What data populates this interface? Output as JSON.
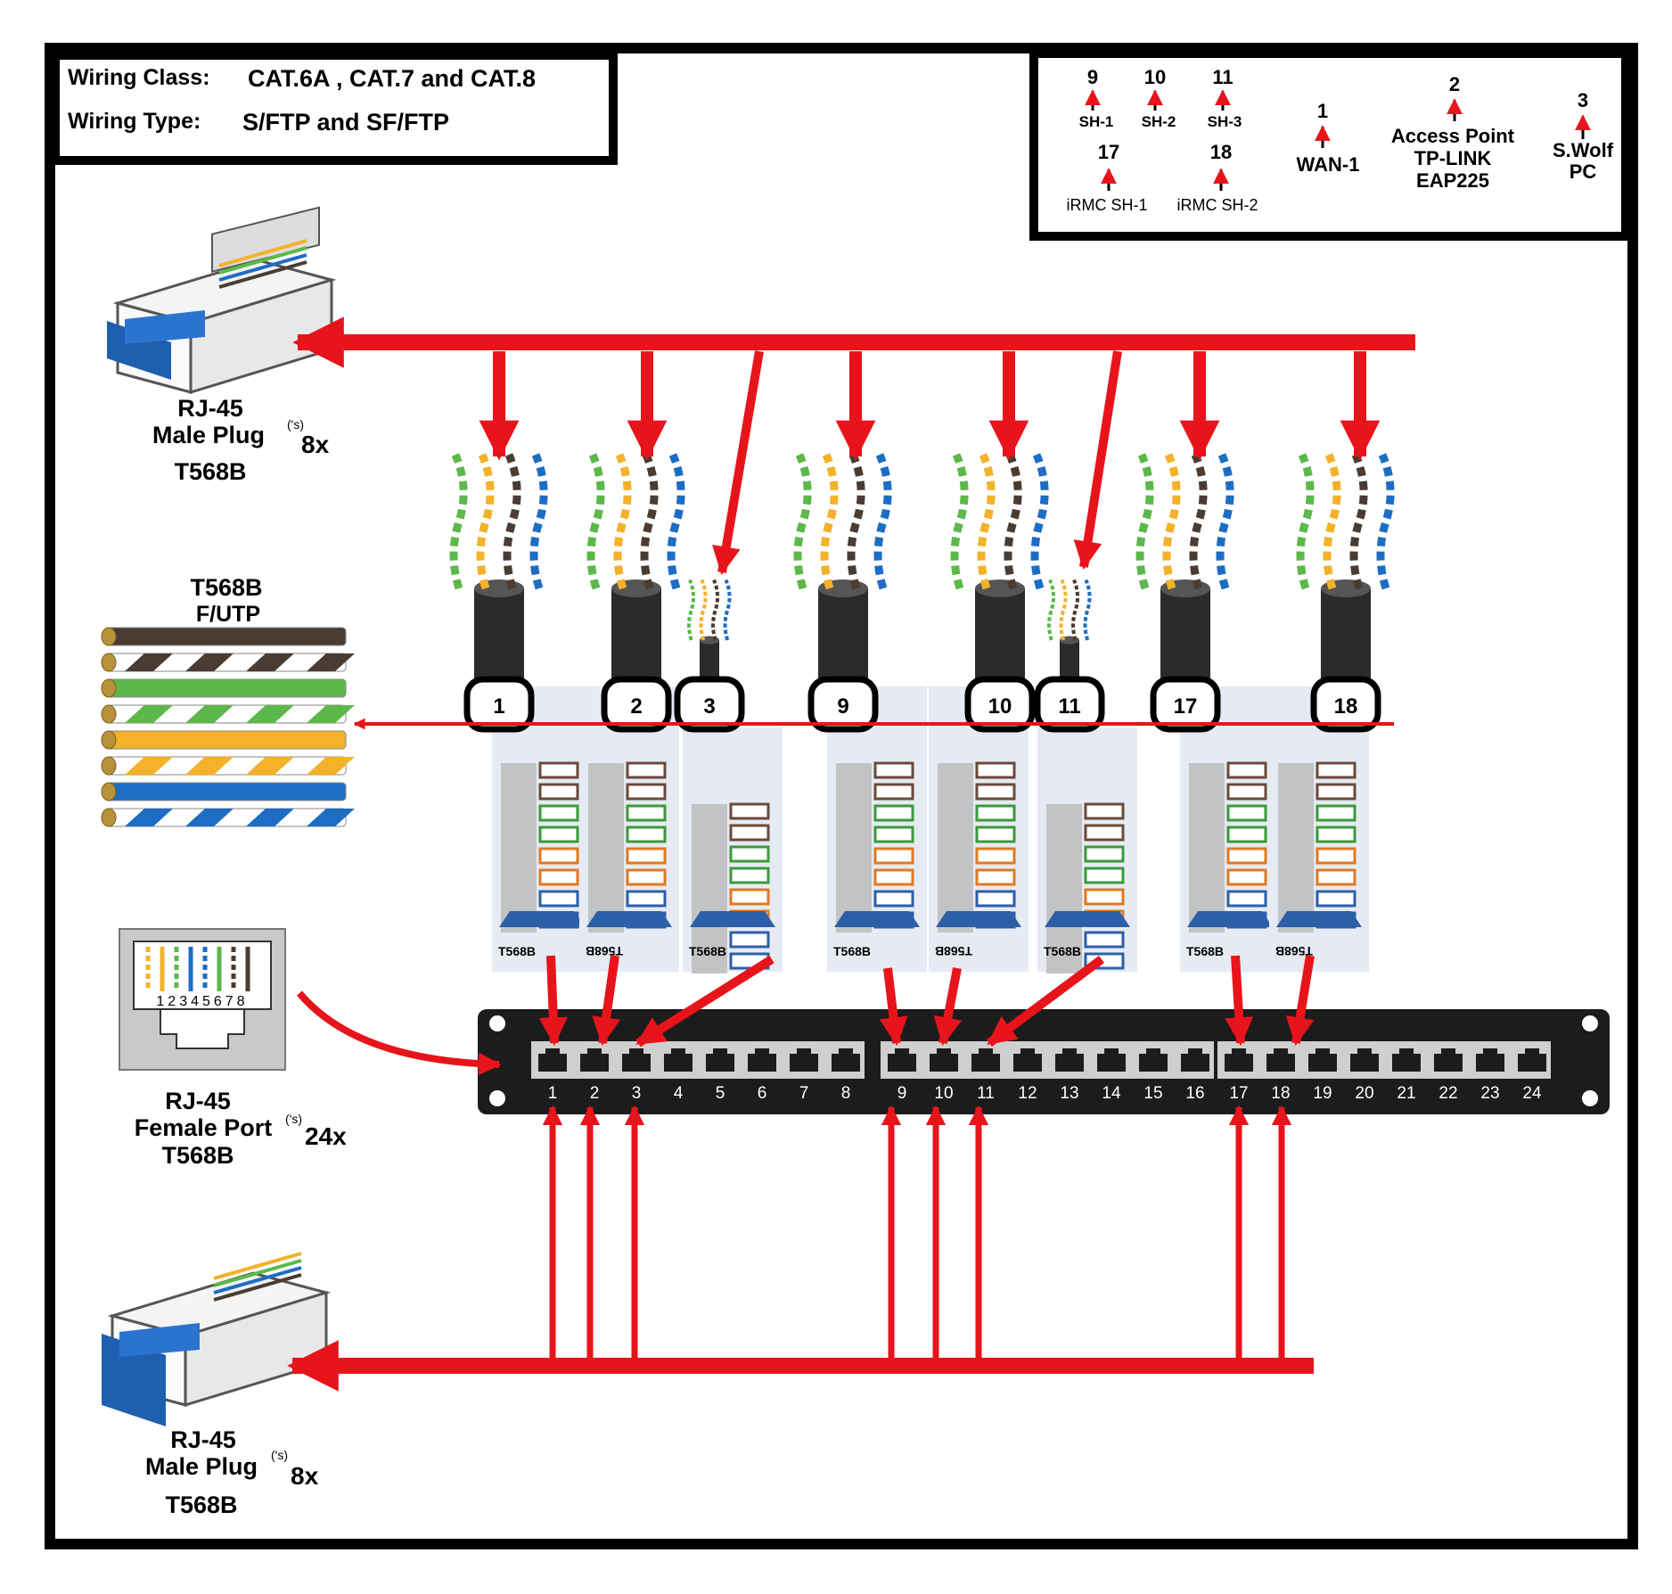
{
  "header": {
    "class_label": "Wiring Class:",
    "class_value": "CAT.6A , CAT.7 and CAT.8",
    "type_label": "Wiring Type:",
    "type_value": "S/FTP and SF/FTP"
  },
  "legend": [
    {
      "num": "9",
      "name": "SH-1"
    },
    {
      "num": "10",
      "name": "SH-2"
    },
    {
      "num": "11",
      "name": "SH-3"
    },
    {
      "num": "17",
      "name": "iRMC SH-1"
    },
    {
      "num": "18",
      "name": "iRMC SH-2"
    },
    {
      "num": "1",
      "name": "WAN-1"
    },
    {
      "num": "2",
      "name": "Access Point",
      "name2": "TP-LINK",
      "name3": "EAP225"
    },
    {
      "num": "3",
      "name": "S.Wolf",
      "name2": "PC"
    }
  ],
  "plug_top": {
    "line1": "RJ-45",
    "line2": "Male Plug",
    "sup": "('s)",
    "count": "8x",
    "line3": "T568B"
  },
  "plug_bottom": {
    "line1": "RJ-45",
    "line2": "Male Plug",
    "sup": "('s)",
    "count": "8x",
    "line3": "T568B"
  },
  "wire_code": {
    "title": "T568B",
    "subtitle": "F/UTP"
  },
  "wire_colors": [
    {
      "base": "#4a3c33",
      "stripe": null
    },
    {
      "base": "#ffffff",
      "stripe": "#4a3c33"
    },
    {
      "base": "#5cb84a",
      "stripe": null
    },
    {
      "base": "#ffffff",
      "stripe": "#5cb84a"
    },
    {
      "base": "#f4b12a",
      "stripe": null
    },
    {
      "base": "#ffffff",
      "stripe": "#f4b12a"
    },
    {
      "base": "#1d6dc4",
      "stripe": null
    },
    {
      "base": "#ffffff",
      "stripe": "#1d6dc4"
    }
  ],
  "female_port": {
    "pins": "12345678",
    "line1": "RJ-45",
    "line2": "Female Port",
    "sup": "('s)",
    "count": "24x",
    "line3": "T568B"
  },
  "jack_standard": "T568B",
  "jack_labels": [
    "1",
    "2",
    "3",
    "9",
    "10",
    "11",
    "17",
    "18"
  ],
  "patch_panel": {
    "ports": [
      "1",
      "2",
      "3",
      "4",
      "5",
      "6",
      "7",
      "8",
      "9",
      "10",
      "11",
      "12",
      "13",
      "14",
      "15",
      "16",
      "17",
      "18",
      "19",
      "20",
      "21",
      "22",
      "23",
      "24"
    ]
  },
  "colors": {
    "arrow": "#e8141b",
    "panel": "#1c1c1c",
    "port_row": "#cfcfcf"
  }
}
